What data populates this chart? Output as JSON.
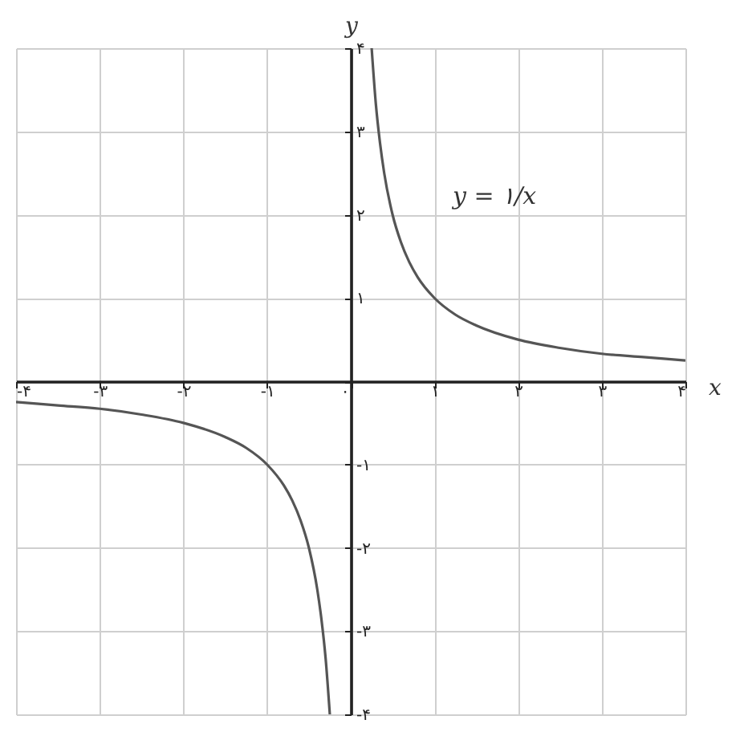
{
  "chart_data": {
    "type": "line",
    "xlabel": "x",
    "ylabel": "y",
    "annotations": [
      "y = ۱/x"
    ],
    "series": [
      {
        "color": "#555555",
        "x": [
          0.25,
          0.3,
          0.35,
          0.4,
          0.5,
          0.6,
          0.7,
          0.8,
          1,
          1.25,
          1.5,
          2,
          2.5,
          3,
          3.5,
          4
        ],
        "values": [
          4,
          3.33,
          2.86,
          2.5,
          2,
          1.67,
          1.43,
          1.25,
          1,
          0.8,
          0.67,
          0.5,
          0.4,
          0.33,
          0.29,
          0.25
        ]
      },
      {
        "color": "#555555",
        "x": [
          -4,
          -3.5,
          -3,
          -2.5,
          -2,
          -1.5,
          -1.25,
          -1,
          -0.8,
          -0.7,
          -0.6,
          -0.5,
          -0.4,
          -0.35,
          -0.3,
          -0.25
        ],
        "values": [
          -0.25,
          -0.29,
          -0.33,
          -0.4,
          -0.5,
          -0.67,
          -0.8,
          -1,
          -1.25,
          -1.43,
          -1.67,
          -2,
          -2.5,
          -2.86,
          -3.33,
          -4
        ]
      }
    ],
    "xlim": [
      -4,
      4
    ],
    "ylim": [
      -4,
      4
    ],
    "xticks": [
      {
        "value": -4,
        "label": "-۴"
      },
      {
        "value": -3,
        "label": "-۳"
      },
      {
        "value": -2,
        "label": "-۲"
      },
      {
        "value": -1,
        "label": "-۱"
      },
      {
        "value": 0,
        "label": "۰"
      },
      {
        "value": 1,
        "label": "۱"
      },
      {
        "value": 2,
        "label": "۲"
      },
      {
        "value": 3,
        "label": "۳"
      },
      {
        "value": 4,
        "label": "۴"
      }
    ],
    "yticks": [
      {
        "value": -4,
        "label": "-۴"
      },
      {
        "value": -3,
        "label": "-۳"
      },
      {
        "value": -2,
        "label": "-۲"
      },
      {
        "value": -1,
        "label": "-۱"
      },
      {
        "value": 0,
        "label": null
      },
      {
        "value": 1,
        "label": "۱"
      },
      {
        "value": 2,
        "label": "۲"
      },
      {
        "value": 3,
        "label": "۳"
      },
      {
        "value": 4,
        "label": "۴"
      }
    ],
    "grid": true,
    "marker": "none",
    "line_style": "solid"
  }
}
